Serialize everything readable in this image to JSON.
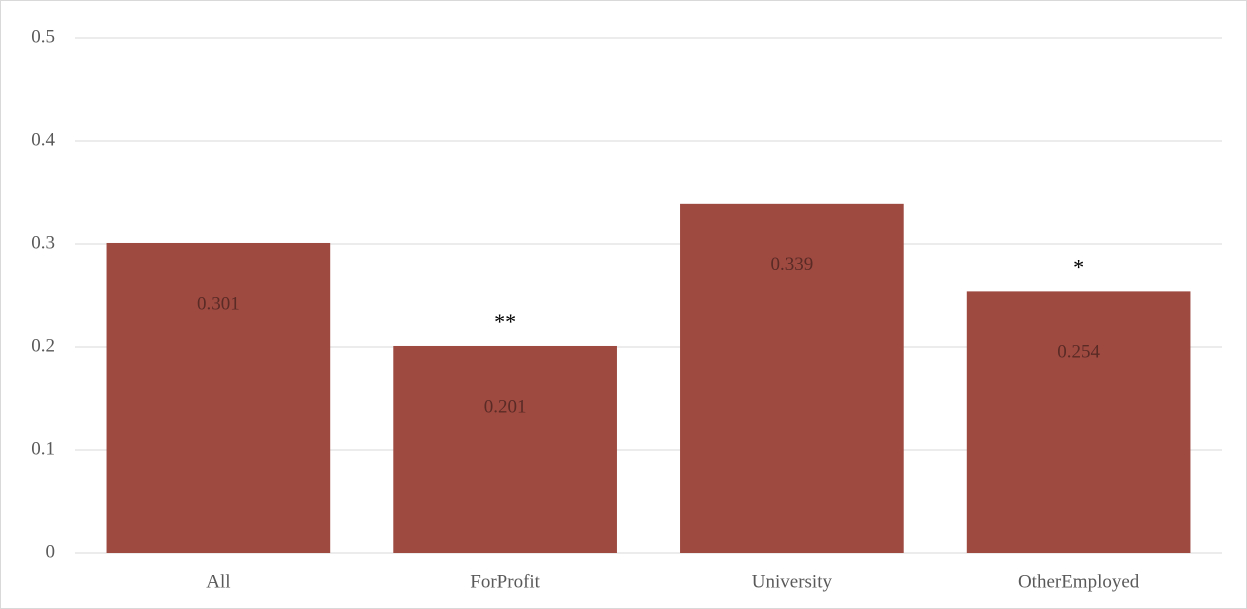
{
  "chart_data": {
    "type": "bar",
    "categories": [
      "All",
      "ForProfit",
      "University",
      "OtherEmployed"
    ],
    "values": [
      0.301,
      0.201,
      0.339,
      0.254
    ],
    "significance": [
      null,
      "**",
      null,
      "*"
    ],
    "color": "#9e4a41",
    "ylim": [
      0,
      0.5
    ],
    "yticks": [
      0,
      0.1,
      0.2,
      0.3,
      0.4,
      0.5
    ],
    "grid": true
  }
}
